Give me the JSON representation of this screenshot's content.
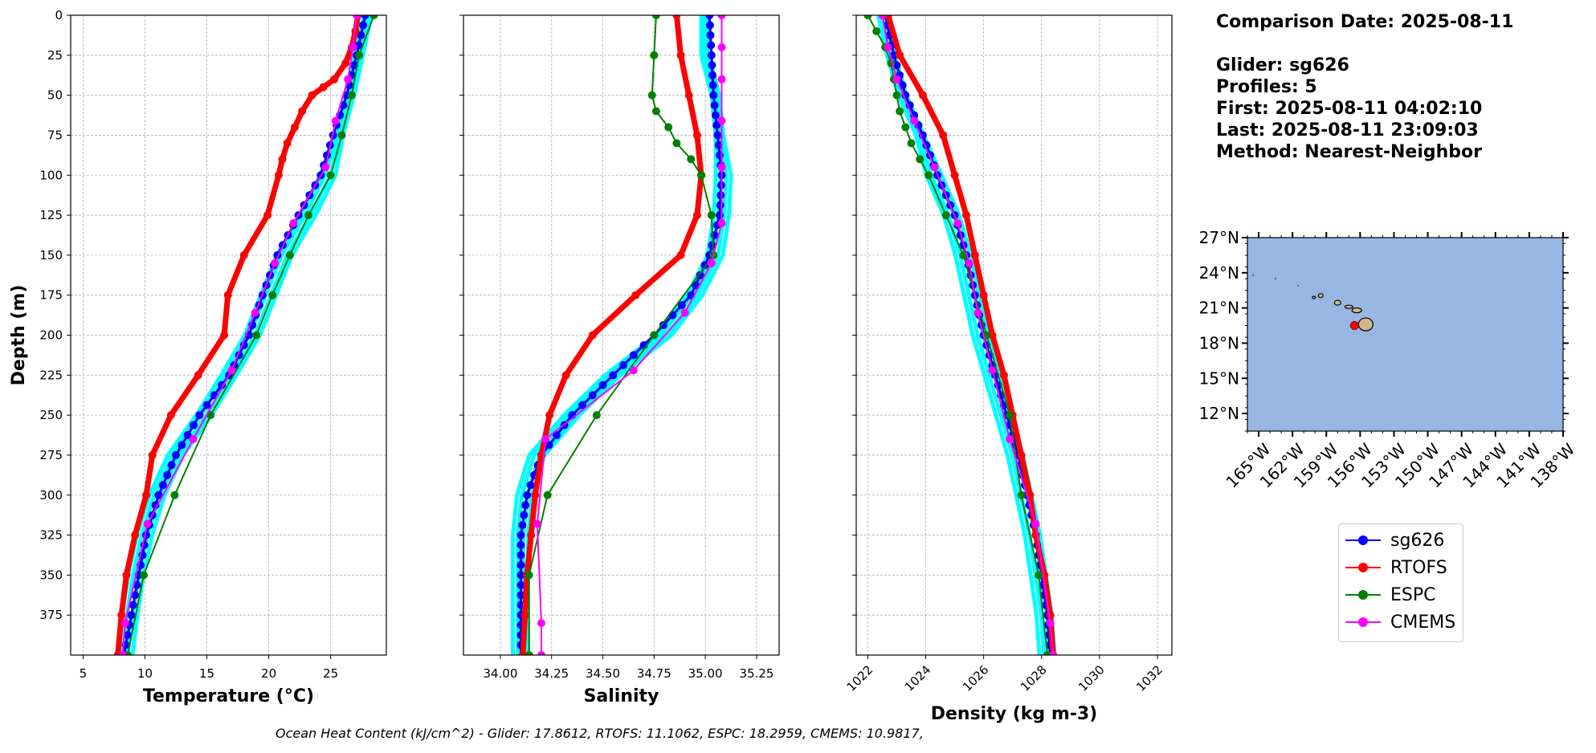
{
  "info": {
    "comparison_date": "Comparison Date: 2025-08-11",
    "glider": "Glider: sg626",
    "profiles": "Profiles: 5",
    "first": "First: 2025-08-11 04:02:10",
    "last": "Last: 2025-08-11 23:09:03",
    "method": "Method: Nearest-Neighbor"
  },
  "footer_text": "Ocean Heat Content (kJ/cm^2) - Glider: 17.8612,  RTOFS: 11.1062,  ESPC: 18.2959,  CMEMS: 10.9817,",
  "colors": {
    "sg626": "#0000ff",
    "RTOFS": "#ff0000",
    "ESPC": "#008000",
    "CMEMS": "#ff00ff",
    "cyan": "#00ffff",
    "ocean": "#97b6e1",
    "land": "#d2b48c"
  },
  "legend": [
    {
      "label": "sg626",
      "color": "#0000ff"
    },
    {
      "label": "RTOFS",
      "color": "#ff0000"
    },
    {
      "label": "ESPC",
      "color": "#008000"
    },
    {
      "label": "CMEMS",
      "color": "#ff00ff"
    }
  ],
  "chart_data": [
    {
      "type": "line",
      "panel": "temperature",
      "xlabel": "Temperature (°C)",
      "ylabel": "Depth (m)",
      "xlim": [
        4,
        29.5
      ],
      "ylim": [
        400,
        0
      ],
      "xticks": [
        5,
        10,
        15,
        20,
        25
      ],
      "yticks": [
        0,
        25,
        50,
        75,
        100,
        125,
        150,
        175,
        200,
        225,
        250,
        275,
        300,
        325,
        350,
        375
      ],
      "grid": true,
      "series": [
        {
          "name": "cyan_profiles",
          "depth": [
            0,
            25,
            50,
            75,
            100,
            125,
            150,
            175,
            200,
            225,
            250,
            275,
            300,
            325,
            350,
            375,
            400
          ],
          "values": [
            28.0,
            27.3,
            26.6,
            25.7,
            24.8,
            23.2,
            21.3,
            20.0,
            18.7,
            16.8,
            14.8,
            12.5,
            11.0,
            10.0,
            9.3,
            8.8,
            8.4
          ]
        },
        {
          "name": "sg626",
          "depth": [
            0,
            25,
            50,
            75,
            100,
            125,
            150,
            175,
            200,
            225,
            250,
            275,
            300,
            325,
            350,
            375,
            400
          ],
          "values": [
            27.8,
            27.1,
            26.3,
            25.2,
            24.2,
            22.4,
            20.7,
            19.5,
            18.4,
            16.8,
            14.4,
            12.5,
            11.1,
            10.1,
            9.5,
            8.9,
            8.3
          ]
        },
        {
          "name": "RTOFS",
          "depth": [
            0,
            10,
            20,
            30,
            40,
            45,
            50,
            60,
            70,
            80,
            90,
            100,
            125,
            150,
            175,
            200,
            225,
            250,
            275,
            300,
            325,
            350,
            375,
            400
          ],
          "values": [
            27.2,
            27.0,
            26.7,
            26.2,
            25.3,
            24.4,
            23.5,
            22.7,
            22.1,
            21.5,
            21.1,
            20.8,
            19.9,
            18.0,
            16.7,
            16.4,
            14.3,
            12.1,
            10.6,
            10.1,
            9.2,
            8.5,
            8.1,
            7.8
          ]
        },
        {
          "name": "ESPC",
          "depth": [
            0,
            25,
            50,
            75,
            100,
            125,
            150,
            175,
            200,
            250,
            300,
            350,
            400
          ],
          "values": [
            28.5,
            27.3,
            26.7,
            25.9,
            25.0,
            23.2,
            21.7,
            20.3,
            19.0,
            15.3,
            12.4,
            9.9,
            8.6
          ]
        },
        {
          "name": "CMEMS",
          "depth": [
            0,
            20,
            40,
            66,
            95,
            130,
            155,
            186,
            222,
            265,
            318,
            380,
            400
          ],
          "values": [
            27.1,
            26.8,
            26.4,
            25.4,
            24.6,
            22.0,
            20.5,
            18.9,
            17.0,
            13.9,
            10.2,
            8.4,
            8.2
          ]
        }
      ]
    },
    {
      "type": "line",
      "panel": "salinity",
      "xlabel": "Salinity",
      "ylabel": "",
      "xlim": [
        33.82,
        35.36
      ],
      "ylim": [
        400,
        0
      ],
      "xticks": [
        34.0,
        34.25,
        34.5,
        34.75,
        35.0,
        35.25
      ],
      "xticklabels": [
        "34.00",
        "34.25",
        "34.50",
        "34.75",
        "35.00",
        "35.25"
      ],
      "grid": true,
      "series": [
        {
          "name": "cyan_profiles",
          "depth": [
            0,
            25,
            50,
            75,
            100,
            125,
            150,
            175,
            200,
            225,
            250,
            275,
            300,
            325,
            350,
            375,
            400
          ],
          "values": [
            35.0,
            35.0,
            35.05,
            35.07,
            35.09,
            35.08,
            35.05,
            34.95,
            34.8,
            34.55,
            34.35,
            34.18,
            34.12,
            34.1,
            34.1,
            34.1,
            34.1
          ]
        },
        {
          "name": "sg626",
          "depth": [
            0,
            25,
            50,
            75,
            100,
            125,
            150,
            175,
            200,
            225,
            250,
            275,
            300,
            325,
            350,
            375,
            400
          ],
          "values": [
            35.02,
            35.03,
            35.04,
            35.06,
            35.08,
            35.07,
            35.02,
            34.93,
            34.75,
            34.55,
            34.35,
            34.2,
            34.13,
            34.1,
            34.1,
            34.1,
            34.1
          ]
        },
        {
          "name": "RTOFS",
          "depth": [
            0,
            25,
            50,
            75,
            100,
            125,
            150,
            175,
            200,
            225,
            250,
            275,
            300,
            325,
            350,
            375,
            400
          ],
          "values": [
            34.86,
            34.88,
            34.92,
            34.96,
            34.98,
            34.96,
            34.88,
            34.66,
            34.45,
            34.32,
            34.24,
            34.2,
            34.17,
            34.15,
            34.13,
            34.12,
            34.11
          ]
        },
        {
          "name": "ESPC",
          "depth": [
            0,
            25,
            50,
            60,
            70,
            80,
            90,
            100,
            125,
            150,
            200,
            250,
            300,
            350,
            400
          ],
          "values": [
            34.76,
            34.75,
            34.74,
            34.76,
            34.82,
            34.86,
            34.93,
            34.98,
            35.03,
            35.04,
            34.75,
            34.47,
            34.23,
            34.14,
            34.14
          ]
        },
        {
          "name": "CMEMS",
          "depth": [
            0,
            20,
            40,
            66,
            95,
            130,
            155,
            186,
            222,
            265,
            318,
            380,
            400
          ],
          "values": [
            35.08,
            35.08,
            35.08,
            35.08,
            35.08,
            35.08,
            35.03,
            34.9,
            34.65,
            34.22,
            34.18,
            34.2,
            34.2
          ]
        }
      ]
    },
    {
      "type": "line",
      "panel": "density",
      "xlabel": "Density (kg m-3)",
      "ylabel": "",
      "xlim": [
        1021.6,
        1032.5
      ],
      "ylim": [
        400,
        0
      ],
      "xticks": [
        1022,
        1024,
        1026,
        1028,
        1030,
        1032
      ],
      "grid": true,
      "series": [
        {
          "name": "cyan_profiles",
          "depth": [
            0,
            25,
            50,
            75,
            100,
            125,
            150,
            175,
            200,
            225,
            250,
            275,
            300,
            325,
            350,
            375,
            400
          ],
          "values": [
            1022.5,
            1022.8,
            1023.2,
            1023.8,
            1024.3,
            1024.9,
            1025.3,
            1025.6,
            1025.9,
            1026.3,
            1026.7,
            1027.1,
            1027.4,
            1027.7,
            1027.9,
            1028.1,
            1028.2
          ]
        },
        {
          "name": "sg626",
          "depth": [
            0,
            25,
            50,
            75,
            100,
            125,
            150,
            175,
            200,
            225,
            250,
            275,
            300,
            325,
            350,
            375,
            400
          ],
          "values": [
            1022.6,
            1022.9,
            1023.3,
            1023.9,
            1024.4,
            1025.0,
            1025.4,
            1025.7,
            1026.0,
            1026.4,
            1026.8,
            1027.2,
            1027.5,
            1027.8,
            1028.0,
            1028.2,
            1028.3
          ]
        },
        {
          "name": "RTOFS",
          "depth": [
            0,
            25,
            50,
            75,
            100,
            125,
            150,
            175,
            200,
            225,
            250,
            275,
            300,
            325,
            350,
            375,
            400
          ],
          "values": [
            1022.7,
            1023.1,
            1023.9,
            1024.6,
            1025.0,
            1025.4,
            1025.7,
            1026.0,
            1026.3,
            1026.7,
            1027.0,
            1027.3,
            1027.6,
            1027.8,
            1028.1,
            1028.3,
            1028.4
          ]
        },
        {
          "name": "ESPC",
          "depth": [
            0,
            10,
            20,
            30,
            40,
            50,
            60,
            70,
            80,
            90,
            100,
            125,
            150,
            200,
            250,
            300,
            350,
            400
          ],
          "values": [
            1022.0,
            1022.3,
            1022.6,
            1022.8,
            1022.9,
            1023.0,
            1023.1,
            1023.3,
            1023.5,
            1023.8,
            1024.1,
            1024.7,
            1025.3,
            1026.1,
            1026.9,
            1027.3,
            1027.9,
            1028.2
          ]
        },
        {
          "name": "CMEMS",
          "depth": [
            0,
            20,
            40,
            66,
            95,
            130,
            155,
            186,
            222,
            265,
            318,
            380,
            400
          ],
          "values": [
            1022.5,
            1022.7,
            1023.0,
            1023.6,
            1024.3,
            1025.1,
            1025.5,
            1025.8,
            1026.3,
            1026.9,
            1027.8,
            1028.3,
            1028.4
          ]
        }
      ]
    },
    {
      "type": "map",
      "panel": "inset_map",
      "lat_ticks": [
        "27°N",
        "24°N",
        "21°N",
        "18°N",
        "15°N",
        "12°N"
      ],
      "lon_ticks": [
        "165°W",
        "162°W",
        "159°W",
        "156°W",
        "153°W",
        "150°W",
        "147°W",
        "144°W",
        "141°W",
        "138°W"
      ],
      "lat_range": [
        10.5,
        27
      ],
      "lon_range": [
        -166,
        -138
      ],
      "marker": {
        "lat": 19.5,
        "lon": -156.5
      }
    }
  ]
}
